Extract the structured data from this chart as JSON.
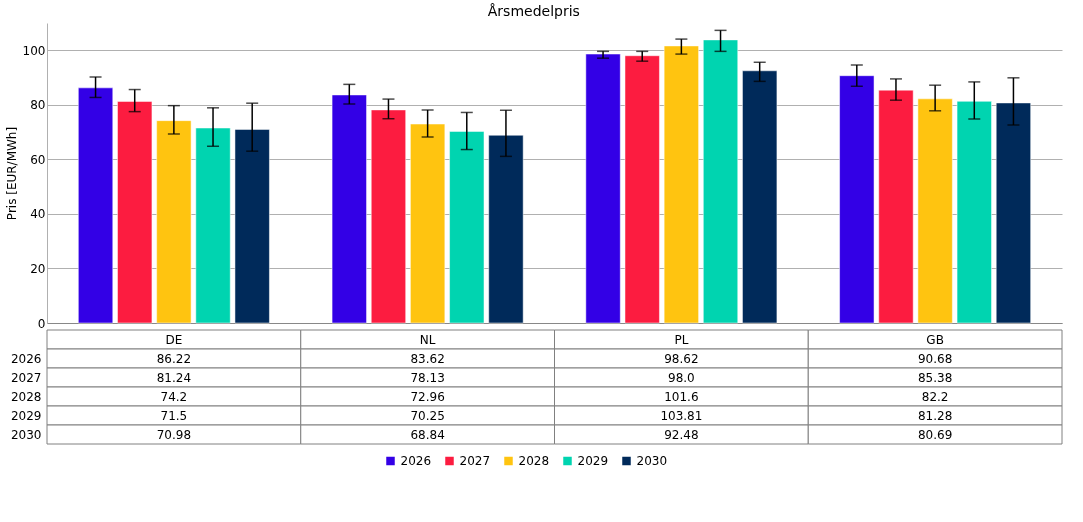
{
  "chart_data": {
    "type": "bar",
    "title": "Årsmedelpris",
    "ylabel": "Pris [EUR/MWh]",
    "categories": [
      "DE",
      "NL",
      "PL",
      "GB"
    ],
    "series": [
      {
        "name": "2026",
        "color": "#3300e6",
        "values": [
          86.22,
          83.62,
          98.62,
          90.68
        ],
        "value_labels": [
          "86.22",
          "83.62",
          "98.62",
          "90.68"
        ],
        "errors": [
          [
            82.7,
            90.2
          ],
          [
            80.3,
            87.5
          ],
          [
            97.1,
            99.6
          ],
          [
            86.8,
            94.6
          ]
        ]
      },
      {
        "name": "2027",
        "color": "#fc1c40",
        "values": [
          81.24,
          78.13,
          98.0,
          85.38
        ],
        "value_labels": [
          "81.24",
          "78.13",
          "98.0",
          "85.38"
        ],
        "errors": [
          [
            77.5,
            85.6
          ],
          [
            74.9,
            82.1
          ],
          [
            96.0,
            99.6
          ],
          [
            81.7,
            89.5
          ]
        ]
      },
      {
        "name": "2028",
        "color": "#ffc410",
        "values": [
          74.2,
          72.96,
          101.6,
          82.2
        ],
        "value_labels": [
          "74.2",
          "72.96",
          "101.6",
          "82.2"
        ],
        "errors": [
          [
            69.3,
            79.7
          ],
          [
            68.2,
            78.1
          ],
          [
            98.6,
            104.1
          ],
          [
            77.8,
            87.2
          ]
        ]
      },
      {
        "name": "2029",
        "color": "#00d4b0",
        "values": [
          71.5,
          70.25,
          103.81,
          81.28
        ],
        "value_labels": [
          "71.5",
          "70.25",
          "103.81",
          "81.28"
        ],
        "errors": [
          [
            64.8,
            78.9
          ],
          [
            63.6,
            77.2
          ],
          [
            99.6,
            107.3
          ],
          [
            74.8,
            88.4
          ]
        ]
      },
      {
        "name": "2030",
        "color": "#002a5a",
        "values": [
          70.98,
          68.84,
          92.48,
          80.69
        ],
        "value_labels": [
          "70.98",
          "68.84",
          "92.48",
          "80.69"
        ],
        "errors": [
          [
            63.0,
            80.6
          ],
          [
            61.1,
            78.0
          ],
          [
            88.6,
            95.6
          ],
          [
            72.6,
            89.9
          ]
        ]
      }
    ],
    "ylim": [
      0,
      110
    ],
    "yticks": [
      0,
      20,
      40,
      60,
      80,
      100
    ],
    "grid": "y",
    "legend": "bottom"
  }
}
